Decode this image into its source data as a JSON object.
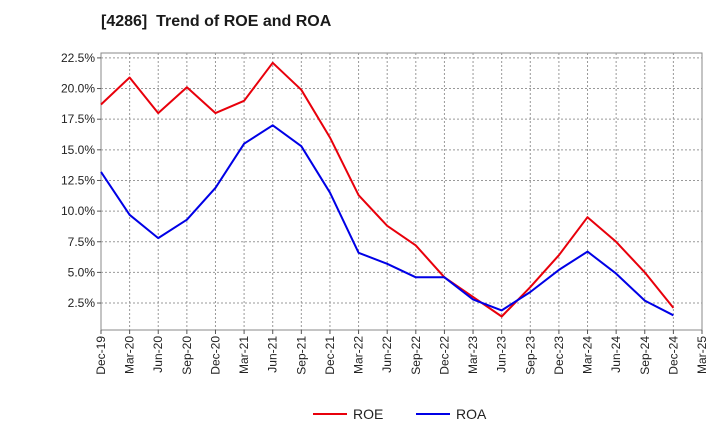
{
  "chart_data": {
    "type": "line",
    "title": "[4286]  Trend of ROE and ROA",
    "xlabel": "",
    "ylabel": "",
    "x": [
      "Dec-19",
      "Mar-20",
      "Jun-20",
      "Sep-20",
      "Dec-20",
      "Mar-21",
      "Jun-21",
      "Sep-21",
      "Dec-21",
      "Mar-22",
      "Jun-22",
      "Sep-22",
      "Dec-22",
      "Mar-23",
      "Jun-23",
      "Sep-23",
      "Dec-23",
      "Mar-24",
      "Jun-24",
      "Sep-24",
      "Dec-24",
      "Mar-25"
    ],
    "y_ticks": [
      "2.5%",
      "5.0%",
      "7.5%",
      "10.0%",
      "12.5%",
      "15.0%",
      "17.5%",
      "20.0%",
      "22.5%"
    ],
    "ylim": [
      0.3,
      22.9
    ],
    "grid": true,
    "legend_position": "bottom-center",
    "series": [
      {
        "name": "ROE",
        "color": "#e8000b",
        "values": [
          18.7,
          20.9,
          18.0,
          20.1,
          18.0,
          19.0,
          22.1,
          19.9,
          16.0,
          11.3,
          8.8,
          7.2,
          4.6,
          3.0,
          1.4,
          3.8,
          6.4,
          9.5,
          7.5,
          5.0,
          2.1,
          null
        ]
      },
      {
        "name": "ROA",
        "color": "#0000e6",
        "values": [
          13.2,
          9.7,
          7.8,
          9.3,
          11.9,
          15.5,
          17.0,
          15.3,
          11.5,
          6.6,
          5.7,
          4.6,
          4.6,
          2.8,
          1.9,
          3.4,
          5.2,
          6.7,
          4.9,
          2.7,
          1.5,
          null
        ]
      }
    ]
  }
}
